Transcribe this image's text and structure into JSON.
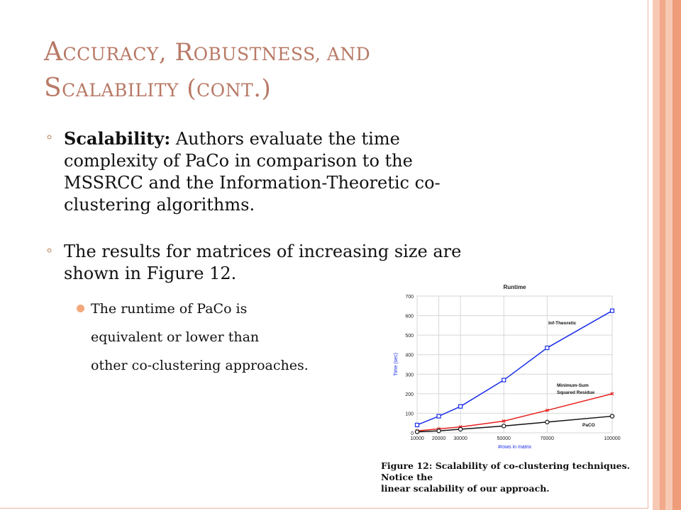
{
  "slide": {
    "title_parts": [
      "A",
      "ccuracy",
      ", R",
      "obustness",
      ", and",
      "S",
      "calability",
      " (",
      "cont",
      ".)"
    ],
    "bullet1_bold": "Scalability:",
    "bullet1_lines": [
      " Authors evaluate the time",
      "complexity of PaCo in comparison to the",
      "MSSRCC and the Information-Theoretic co-",
      "clustering algorithms."
    ],
    "bullet2_lines": [
      "The results for matrices of increasing size are",
      "shown in Figure 12."
    ],
    "sub_lines": [
      "The runtime of PaCo is",
      "equivalent or lower than",
      "other co-clustering approaches."
    ],
    "caption_lines": [
      "Figure 12:  Scalability of co-clustering techniques.  Notice the",
      "linear scalability of our approach."
    ]
  },
  "colors": {
    "title": "#b87966",
    "bullet": "#c9a488",
    "stripes": [
      "#f7c9b4",
      "#f2a98a",
      "#f7c9b4",
      "#ee9c7a"
    ]
  },
  "chart_data": {
    "type": "line",
    "title": "Runtime",
    "xlabel": "#rows in matrix",
    "ylabel": "Time (sec)",
    "x": [
      10000,
      20000,
      30000,
      50000,
      70000,
      100000
    ],
    "x_tick_labels": [
      "10000",
      "20000",
      "30000",
      "50000",
      "70000",
      "100000"
    ],
    "y_ticks": [
      0,
      100,
      200,
      300,
      400,
      500,
      600,
      700
    ],
    "y_tick_labels": [
      "0",
      "100",
      "200",
      "300",
      "400",
      "500",
      "600",
      "700"
    ],
    "ylim": [
      0,
      700
    ],
    "grid": true,
    "series": [
      {
        "name": "Inf-Theoretic",
        "color": "#1a2ee8",
        "marker": "square",
        "values": [
          40,
          85,
          135,
          270,
          435,
          625
        ]
      },
      {
        "name": "Minimum-Sum Squared Residue",
        "color": "#e82020",
        "marker": "x",
        "values": [
          10,
          20,
          30,
          60,
          115,
          200
        ]
      },
      {
        "name": "PaCO",
        "color": "#111111",
        "marker": "circle",
        "values": [
          5,
          10,
          18,
          35,
          55,
          85
        ]
      }
    ]
  }
}
